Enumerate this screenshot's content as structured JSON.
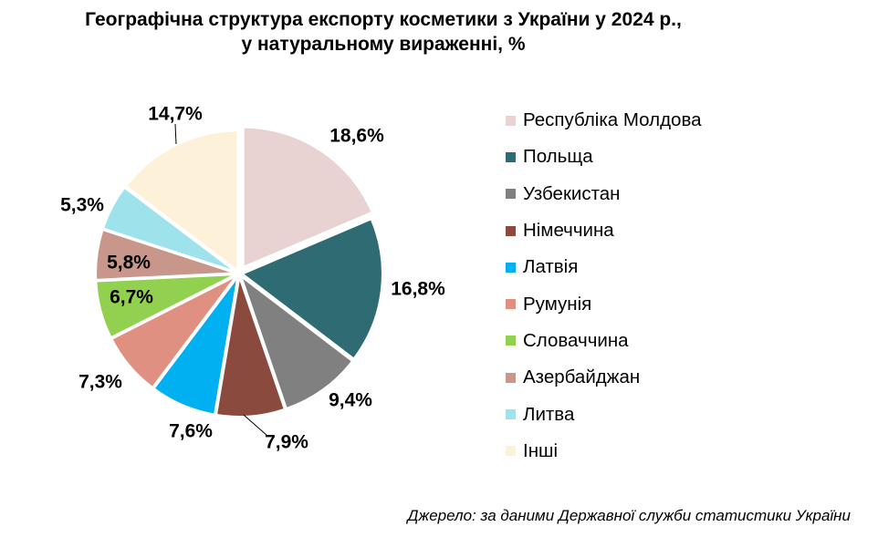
{
  "chart_data": {
    "type": "pie",
    "title_line1": "Географічна структура експорту косметики з України у 2024 р.,",
    "title_line2": "у натуральному вираженні, %",
    "slices": [
      {
        "label": "Республіка Молдова",
        "value": 18.6,
        "value_label": "18,6%",
        "color": "#e8d3d2"
      },
      {
        "label": "Польща",
        "value": 16.8,
        "value_label": "16,8%",
        "color": "#2e6b72"
      },
      {
        "label": "Узбекистан",
        "value": 9.4,
        "value_label": "9,4%",
        "color": "#808080"
      },
      {
        "label": "Німеччина",
        "value": 7.9,
        "value_label": "7,9%",
        "color": "#8b4a3e"
      },
      {
        "label": "Латвія",
        "value": 7.6,
        "value_label": "7,6%",
        "color": "#00b0f0"
      },
      {
        "label": "Румунія",
        "value": 7.3,
        "value_label": "7,3%",
        "color": "#e09080"
      },
      {
        "label": "Словаччина",
        "value": 6.7,
        "value_label": "6,7%",
        "color": "#92d050"
      },
      {
        "label": "Азербайджан",
        "value": 5.8,
        "value_label": "5,8%",
        "color": "#c8968a"
      },
      {
        "label": "Литва",
        "value": 5.3,
        "value_label": "5,3%",
        "color": "#9ee2ec"
      },
      {
        "label": "Інші",
        "value": 14.7,
        "value_label": "14,7%",
        "color": "#fdf2d9"
      }
    ],
    "legend_position": "right"
  },
  "source": "Джерело: за даними Державної служби статистики України"
}
